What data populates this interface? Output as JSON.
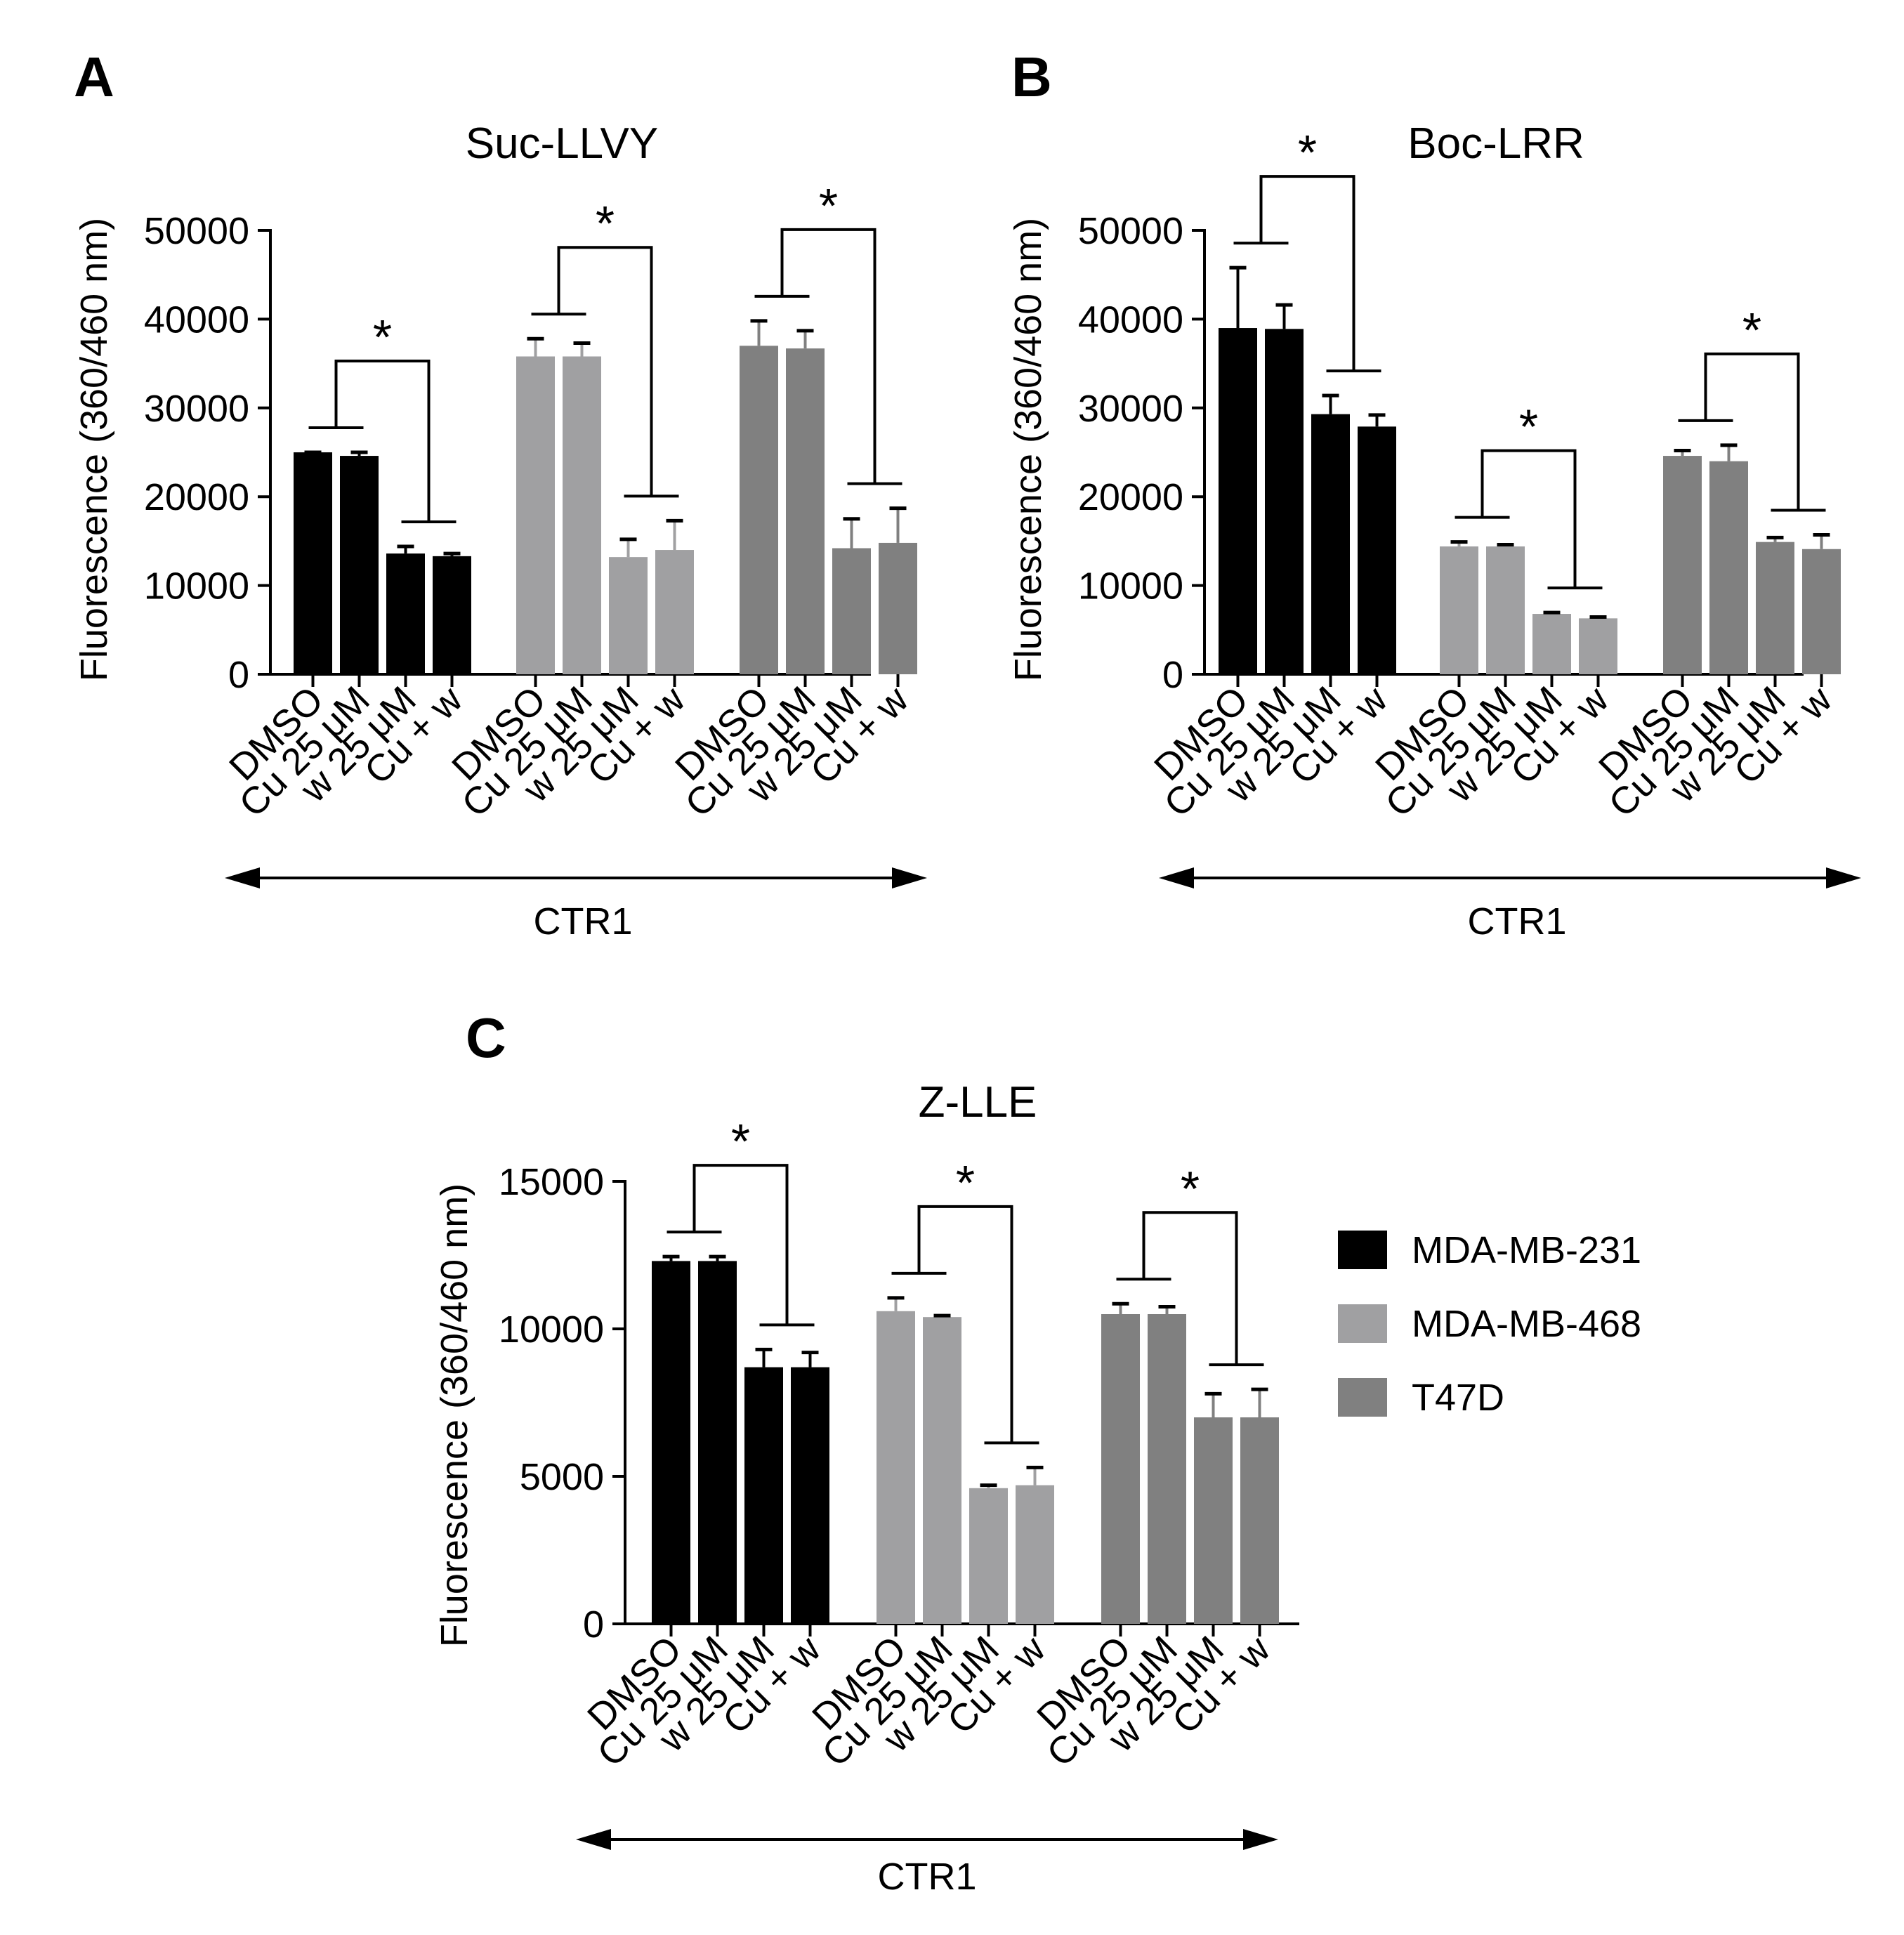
{
  "panel_letters": [
    "A",
    "B",
    "C"
  ],
  "legend": {
    "entries": [
      {
        "label": "MDA-MB-231",
        "color": "#000000"
      },
      {
        "label": "MDA-MB-468",
        "color": "#a0a0a2"
      },
      {
        "label": "T47D",
        "color": "#808080"
      }
    ]
  },
  "significance_marker": "*",
  "chart_data": [
    {
      "type": "bar",
      "panel": "A",
      "title": "Suc-LLVY",
      "ylabel": "Fluorescence (360/460 nm)",
      "ylim": [
        0,
        50000
      ],
      "yticks": [
        "0",
        "10000",
        "20000",
        "30000",
        "40000",
        "50000"
      ],
      "categories": [
        "DMSO",
        "Cu 25 μM",
        "w 25 μM",
        "Cu + w"
      ],
      "group_label": "CTR1",
      "series": [
        {
          "name": "MDA-MB-231",
          "values": [
            25000,
            24600,
            13600,
            13300
          ],
          "errors": [
            0,
            400,
            800,
            300
          ]
        },
        {
          "name": "MDA-MB-468",
          "values": [
            35800,
            35800,
            13200,
            14000
          ],
          "errors": [
            2000,
            1500,
            2000,
            3300
          ]
        },
        {
          "name": "T47D",
          "values": [
            37000,
            36700,
            14200,
            14800
          ],
          "errors": [
            2800,
            2000,
            3300,
            3900
          ]
        }
      ]
    },
    {
      "type": "bar",
      "panel": "B",
      "title": "Boc-LRR",
      "ylabel": "Fluorescence (360/460 nm)",
      "ylim": [
        0,
        50000
      ],
      "yticks": [
        "0",
        "10000",
        "20000",
        "30000",
        "40000",
        "50000"
      ],
      "categories": [
        "DMSO",
        "Cu 25 μM",
        "w 25 μM",
        "Cu + w"
      ],
      "group_label": "CTR1",
      "series": [
        {
          "name": "MDA-MB-231",
          "values": [
            39000,
            38900,
            29300,
            27900
          ],
          "errors": [
            6800,
            2700,
            2100,
            1300
          ]
        },
        {
          "name": "MDA-MB-468",
          "values": [
            14400,
            14400,
            6800,
            6300
          ],
          "errors": [
            500,
            200,
            150,
            150
          ]
        },
        {
          "name": "T47D",
          "values": [
            24600,
            24000,
            14900,
            14100
          ],
          "errors": [
            600,
            1800,
            500,
            1600
          ]
        }
      ]
    },
    {
      "type": "bar",
      "panel": "C",
      "title": "Z-LLE",
      "ylabel": "Fluorescence (360/460 nm)",
      "ylim": [
        0,
        15000
      ],
      "yticks": [
        "0",
        "5000",
        "10000",
        "15000"
      ],
      "categories": [
        "DMSO",
        "Cu 25 μM",
        "w 25 μM",
        "Cu + w"
      ],
      "group_label": "CTR1",
      "series": [
        {
          "name": "MDA-MB-231",
          "values": [
            12300,
            12300,
            8700,
            8700
          ],
          "errors": [
            150,
            150,
            600,
            500
          ]
        },
        {
          "name": "MDA-MB-468",
          "values": [
            10600,
            10400,
            4600,
            4700
          ],
          "errors": [
            450,
            50,
            100,
            600
          ]
        },
        {
          "name": "T47D",
          "values": [
            10500,
            10500,
            7000,
            7000
          ],
          "errors": [
            350,
            250,
            800,
            950
          ]
        }
      ]
    }
  ]
}
